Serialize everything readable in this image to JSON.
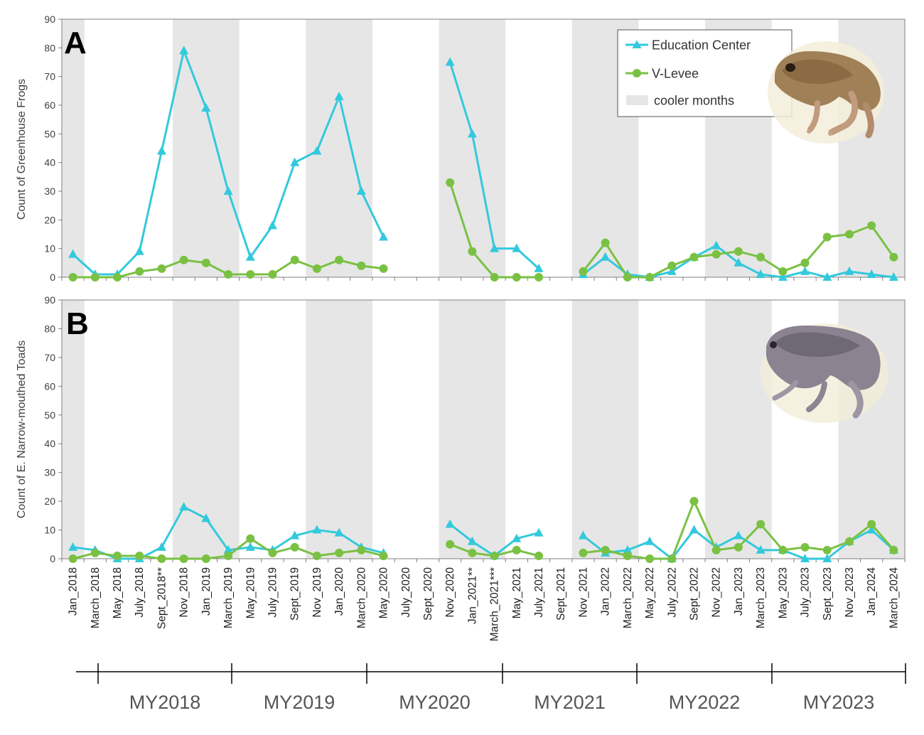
{
  "colors": {
    "education_center": "#33C9DC",
    "v_levee": "#7AC143",
    "cooler": "#E6E6E6",
    "axis": "#808080"
  },
  "legend": {
    "items": [
      {
        "label": "Education Center",
        "marker": "triangle",
        "color": "#33C9DC"
      },
      {
        "label": "V-Levee",
        "marker": "circle",
        "color": "#7AC143"
      },
      {
        "label": "cooler months",
        "marker": "band",
        "color": "#E6E6E6"
      }
    ]
  },
  "x_months": [
    "Jan_2018",
    "March_2018",
    "May_2018",
    "July_2018",
    "Sept_2018**",
    "Nov_2018",
    "Jan_2019",
    "March_2019",
    "May_2019",
    "July_2019",
    "Sept_2019",
    "Nov_2019",
    "Jan_2020",
    "March_2020",
    "May_2020",
    "July_2020",
    "Sept_2020",
    "Nov_2020",
    "Jan_2021**",
    "March_2021***",
    "May_2021",
    "July_2021",
    "Sept_2021",
    "Nov_2021",
    "Jan_2022",
    "March_2022",
    "May_2022",
    "July_2022",
    "Sept_2022",
    "Nov_2022",
    "Jan_2023",
    "March_2023",
    "May_2023",
    "July_2023",
    "Sept_2023",
    "Nov_2023",
    "Jan_2024",
    "March_2024"
  ],
  "monitoring_years": [
    "MY2018",
    "MY2019",
    "MY2020",
    "MY2021",
    "MY2022",
    "MY2023"
  ],
  "chart_data": [
    {
      "type": "line",
      "panel": "A",
      "ylabel": "Count of Greenhouse Frogs",
      "ylim": [
        0,
        90
      ],
      "yticks": [
        0,
        10,
        20,
        30,
        40,
        50,
        60,
        70,
        80,
        90
      ],
      "categories": [
        "Jan_2018",
        "March_2018",
        "May_2018",
        "July_2018",
        "Sept_2018**",
        "Nov_2018",
        "Jan_2019",
        "March_2019",
        "May_2019",
        "July_2019",
        "Sept_2019",
        "Nov_2019",
        "Jan_2020",
        "March_2020",
        "May_2020",
        "July_2020",
        "Sept_2020",
        "Nov_2020",
        "Jan_2021**",
        "March_2021***",
        "May_2021",
        "July_2021",
        "Sept_2021",
        "Nov_2021",
        "Jan_2022",
        "March_2022",
        "May_2022",
        "July_2022",
        "Sept_2022",
        "Nov_2022",
        "Jan_2023",
        "March_2023",
        "May_2023",
        "July_2023",
        "Sept_2023",
        "Nov_2023",
        "Jan_2024",
        "March_2024"
      ],
      "series": [
        {
          "name": "Education Center",
          "values": [
            8,
            1,
            1,
            9,
            44,
            79,
            59,
            30,
            7,
            18,
            40,
            44,
            63,
            30,
            14,
            null,
            null,
            75,
            50,
            10,
            10,
            3,
            null,
            1,
            7,
            1,
            0,
            2,
            7,
            11,
            5,
            1,
            0,
            2,
            0,
            2,
            1,
            0
          ]
        },
        {
          "name": "V-Levee",
          "values": [
            0,
            0,
            0,
            2,
            3,
            6,
            5,
            1,
            1,
            1,
            6,
            3,
            6,
            4,
            3,
            null,
            null,
            33,
            9,
            0,
            0,
            0,
            null,
            2,
            12,
            0,
            0,
            4,
            7,
            8,
            9,
            7,
            2,
            5,
            14,
            15,
            18,
            7
          ]
        }
      ]
    },
    {
      "type": "line",
      "panel": "B",
      "ylabel": "Count of E. Narrow-mouthed Toads",
      "ylim": [
        0,
        90
      ],
      "yticks": [
        0,
        10,
        20,
        30,
        40,
        50,
        60,
        70,
        80,
        90
      ],
      "categories": [
        "Jan_2018",
        "March_2018",
        "May_2018",
        "July_2018",
        "Sept_2018**",
        "Nov_2018",
        "Jan_2019",
        "March_2019",
        "May_2019",
        "July_2019",
        "Sept_2019",
        "Nov_2019",
        "Jan_2020",
        "March_2020",
        "May_2020",
        "July_2020",
        "Sept_2020",
        "Nov_2020",
        "Jan_2021**",
        "March_2021***",
        "May_2021",
        "July_2021",
        "Sept_2021",
        "Nov_2021",
        "Jan_2022",
        "March_2022",
        "May_2022",
        "July_2022",
        "Sept_2022",
        "Nov_2022",
        "Jan_2023",
        "March_2023",
        "May_2023",
        "July_2023",
        "Sept_2023",
        "Nov_2023",
        "Jan_2024",
        "March_2024"
      ],
      "series": [
        {
          "name": "Education Center",
          "values": [
            4,
            3,
            0,
            0,
            4,
            18,
            14,
            3,
            4,
            3,
            8,
            10,
            9,
            4,
            2,
            null,
            null,
            12,
            6,
            1,
            7,
            9,
            null,
            8,
            2,
            3,
            6,
            0,
            10,
            4,
            8,
            3,
            3,
            0,
            0,
            6,
            10,
            3
          ]
        },
        {
          "name": "V-Levee",
          "values": [
            0,
            2,
            1,
            1,
            0,
            0,
            0,
            1,
            7,
            2,
            4,
            1,
            2,
            3,
            1,
            null,
            null,
            5,
            2,
            1,
            3,
            1,
            null,
            2,
            3,
            1,
            0,
            0,
            20,
            3,
            4,
            12,
            3,
            4,
            3,
            6,
            12,
            3
          ]
        }
      ]
    }
  ]
}
